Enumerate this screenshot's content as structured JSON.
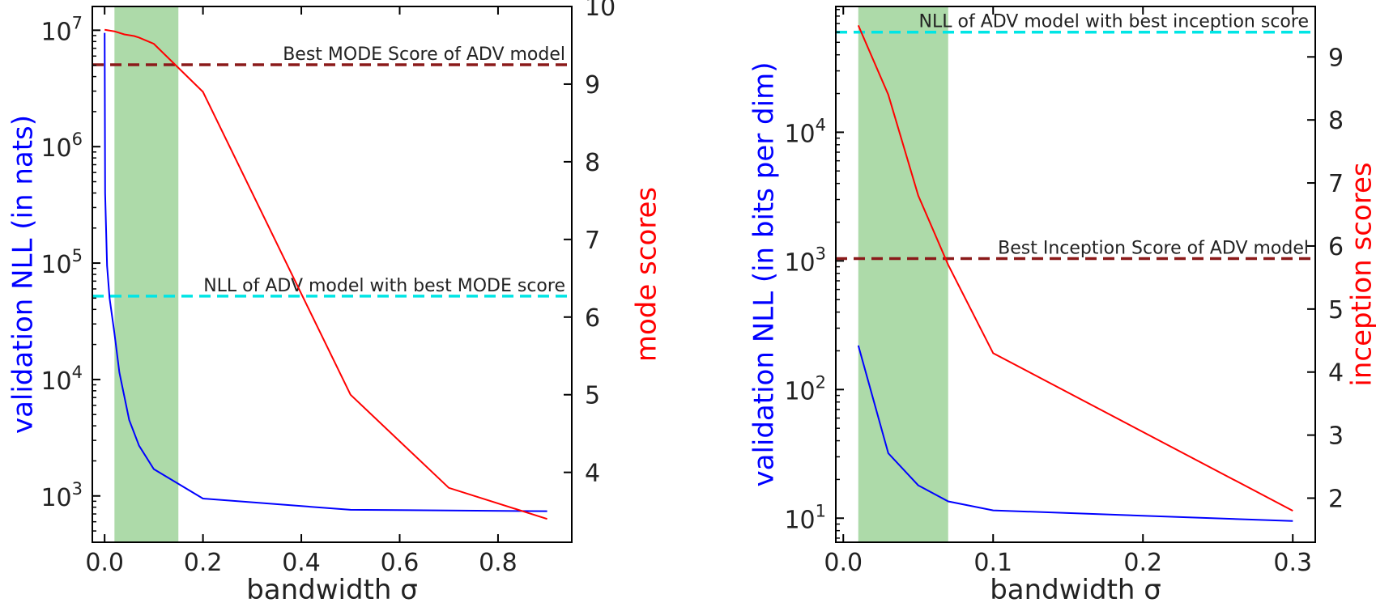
{
  "chart_data": [
    {
      "type": "line",
      "x": [
        0.0,
        0.001,
        0.005,
        0.01,
        0.02,
        0.03,
        0.05,
        0.07,
        0.1,
        0.2,
        0.5,
        0.9
      ],
      "xlabel": "bandwidth σ",
      "xlim": [
        -0.025,
        0.95
      ],
      "xticks": [
        0.0,
        0.2,
        0.4,
        0.6,
        0.8
      ],
      "xtick_labels": [
        "0.0",
        "0.2",
        "0.4",
        "0.6",
        "0.8"
      ],
      "left_axis": {
        "label": "validation NLL (in nats)",
        "color": "#0000ff",
        "scale": "log",
        "ylim": [
          400,
          16000000
        ],
        "ticks": [
          1000,
          10000,
          100000,
          1000000,
          10000000
        ],
        "tick_labels": [
          {
            "base": "10",
            "exp": "3"
          },
          {
            "base": "10",
            "exp": "4"
          },
          {
            "base": "10",
            "exp": "5"
          },
          {
            "base": "10",
            "exp": "6"
          },
          {
            "base": "10",
            "exp": "7"
          }
        ]
      },
      "right_axis": {
        "label": "mode scores",
        "color": "#ff0000",
        "ylim": [
          3.1,
          10.0
        ],
        "ticks": [
          4,
          5,
          6,
          7,
          8,
          9,
          10
        ],
        "tick_labels": [
          "4",
          "5",
          "6",
          "7",
          "8",
          "9",
          "10"
        ]
      },
      "series": [
        {
          "axis": "left",
          "color": "#0000ff",
          "x": [
            0.0,
            0.001,
            0.005,
            0.01,
            0.02,
            0.03,
            0.05,
            0.07,
            0.1,
            0.2,
            0.5,
            0.9
          ],
          "values": [
            9500000,
            400000,
            95000,
            50000,
            25000,
            11500,
            4500,
            2700,
            1700,
            950,
            760,
            740
          ]
        },
        {
          "axis": "right",
          "color": "#ff0000",
          "x": [
            0.0,
            0.02,
            0.04,
            0.06,
            0.07,
            0.1,
            0.2,
            0.5,
            0.7,
            0.9
          ],
          "values": [
            9.7,
            9.68,
            9.64,
            9.62,
            9.6,
            9.52,
            8.9,
            5.0,
            3.8,
            3.4
          ]
        }
      ],
      "reference_lines": [
        {
          "axis": "left",
          "value": 52000,
          "color": "#00e5e5",
          "style": "dashed",
          "label": "NLL of ADV model with best MODE score"
        },
        {
          "axis": "right",
          "value": 9.25,
          "color": "#8b1a1a",
          "style": "dashed",
          "label": "Best MODE Score of ADV model"
        }
      ],
      "shaded_region": {
        "x": [
          0.02,
          0.15
        ],
        "color": "#9fd39a"
      }
    },
    {
      "type": "line",
      "x": [
        0.01,
        0.03,
        0.05,
        0.07,
        0.1,
        0.3
      ],
      "xlabel": "bandwidth σ",
      "xlim": [
        -0.005,
        0.315
      ],
      "xticks": [
        0.0,
        0.1,
        0.2,
        0.3
      ],
      "xtick_labels": [
        "0.0",
        "0.1",
        "0.2",
        "0.3"
      ],
      "left_axis": {
        "label": "validation NLL (in bits per dim)",
        "color": "#0000ff",
        "scale": "log",
        "ylim": [
          6.5,
          95000
        ],
        "ticks": [
          10,
          100,
          1000,
          10000
        ],
        "tick_labels": [
          {
            "base": "10",
            "exp": "1"
          },
          {
            "base": "10",
            "exp": "2"
          },
          {
            "base": "10",
            "exp": "3"
          },
          {
            "base": "10",
            "exp": "4"
          }
        ]
      },
      "right_axis": {
        "label": "inception scores",
        "color": "#ff0000",
        "ylim": [
          1.3,
          9.8
        ],
        "ticks": [
          2,
          3,
          4,
          5,
          6,
          7,
          8,
          9
        ],
        "tick_labels": [
          "2",
          "3",
          "4",
          "5",
          "6",
          "7",
          "8",
          "9"
        ]
      },
      "series": [
        {
          "axis": "left",
          "color": "#0000ff",
          "x": [
            0.01,
            0.03,
            0.05,
            0.07,
            0.1,
            0.3
          ],
          "values": [
            220,
            32,
            18,
            13.5,
            11.5,
            9.5
          ]
        },
        {
          "axis": "right",
          "color": "#ff0000",
          "x": [
            0.01,
            0.03,
            0.05,
            0.07,
            0.1,
            0.3
          ],
          "values": [
            9.5,
            8.4,
            6.8,
            5.7,
            4.3,
            1.8
          ]
        }
      ],
      "reference_lines": [
        {
          "axis": "left",
          "value": 60000,
          "color": "#00e5e5",
          "style": "dashed",
          "label": "NLL of ADV model with best inception score"
        },
        {
          "axis": "right",
          "value": 5.8,
          "color": "#8b1a1a",
          "style": "dashed",
          "label": "Best Inception Score of ADV model"
        }
      ],
      "shaded_region": {
        "x": [
          0.01,
          0.07
        ],
        "color": "#9fd39a"
      }
    }
  ]
}
